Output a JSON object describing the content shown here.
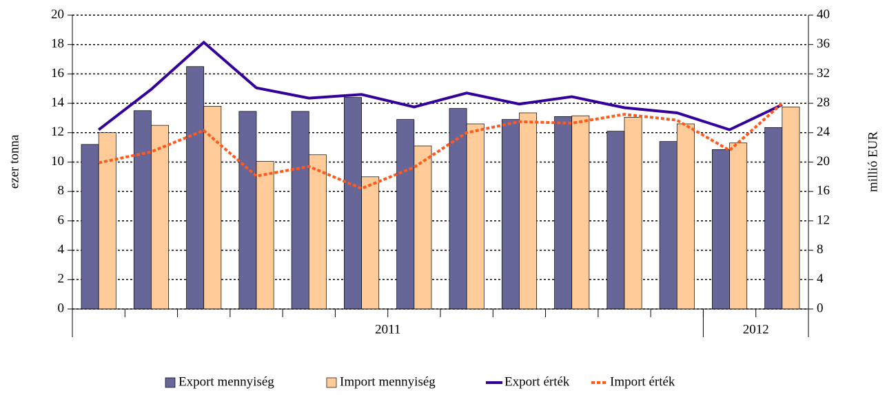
{
  "chart_data": {
    "type": "bar",
    "categories": [
      null,
      null,
      null,
      null,
      null,
      null,
      null,
      null,
      null,
      null,
      null,
      null,
      null,
      null
    ],
    "groups": [
      {
        "label": "2011",
        "span": 12
      },
      {
        "label": "2012",
        "span": 2
      }
    ],
    "ylabel": "ezer tonna",
    "y2label": "millió EUR",
    "ylim": [
      0,
      20
    ],
    "yticks": [
      0,
      2,
      4,
      6,
      8,
      10,
      12,
      14,
      16,
      18,
      20
    ],
    "y2lim": [
      0,
      40
    ],
    "y2ticks": [
      0,
      4,
      8,
      12,
      16,
      20,
      24,
      28,
      32,
      36,
      40
    ],
    "grid": true,
    "legend": "bottom",
    "series": [
      {
        "name": "Export mennyiség",
        "type": "bar",
        "color": "#666699",
        "values": [
          11.2,
          13.5,
          16.5,
          13.45,
          13.45,
          14.4,
          12.9,
          13.65,
          12.9,
          13.1,
          12.1,
          11.4,
          10.85,
          12.35
        ]
      },
      {
        "name": "Import mennyiség",
        "type": "bar",
        "color": "#ffcc99",
        "values": [
          12.0,
          12.5,
          13.8,
          10.05,
          10.5,
          9.0,
          11.1,
          12.6,
          13.35,
          13.15,
          13.05,
          12.6,
          11.3,
          13.75
        ]
      },
      {
        "name": "Export érték",
        "type": "line",
        "axis": "y2",
        "color": "#330099",
        "line_style": "solid",
        "values": [
          24.4,
          29.9,
          36.3,
          30.1,
          28.7,
          29.2,
          27.5,
          29.4,
          27.9,
          28.9,
          27.4,
          26.7,
          24.4,
          27.8
        ]
      },
      {
        "name": "Import érték",
        "type": "line",
        "axis": "y2",
        "color": "#ff5a1e",
        "line_style": "dotted",
        "values": [
          19.9,
          21.4,
          24.3,
          18.1,
          19.4,
          16.4,
          19.3,
          24.0,
          25.5,
          25.3,
          26.5,
          25.7,
          21.6,
          28.0
        ]
      }
    ]
  }
}
